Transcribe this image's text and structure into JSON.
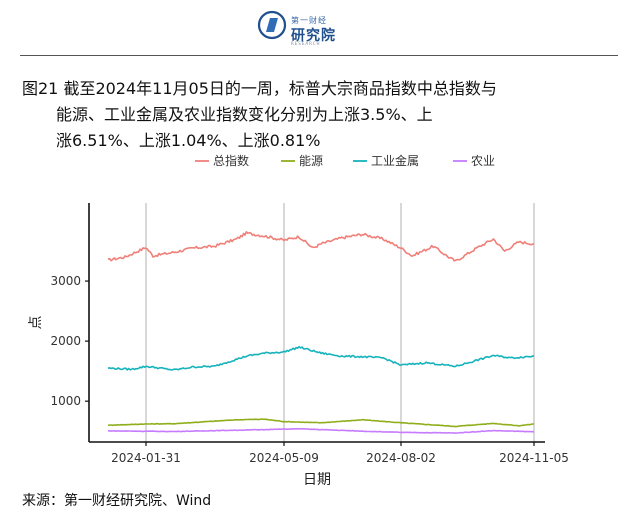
{
  "brand": {
    "small": "第一财经",
    "name": "研究院",
    "sub": "RESEARCH"
  },
  "title": {
    "line1": "图21  截至2024年11月05日的一周，标普大宗商品指数中总指数与",
    "line2": "能源、工业金属及农业指数变化分别为上涨3.5%、上",
    "line3": "涨6.51%、上涨1.04%、上涨0.81%"
  },
  "source": "来源：第一财经研究院、Wind",
  "chart_data": {
    "type": "line",
    "xlabel": "日期",
    "ylabel": "点",
    "x_ticks": [
      "2024-01-31",
      "2024-05-09",
      "2024-08-02",
      "2024-11-05"
    ],
    "x_range": [
      "2024-01-02",
      "2024-11-05"
    ],
    "y_ticks": [
      1000,
      2000,
      3000
    ],
    "ylim": [
      320,
      4300
    ],
    "grid": "vertical lines at x ticks",
    "legend_position": "top",
    "series": [
      {
        "name": "总指数",
        "color": "#f07f78",
        "x": [
          "2024-01-02",
          "2024-01-15",
          "2024-01-31",
          "2024-02-05",
          "2024-02-20",
          "2024-03-05",
          "2024-03-20",
          "2024-04-05",
          "2024-04-12",
          "2024-04-25",
          "2024-05-09",
          "2024-05-20",
          "2024-05-30",
          "2024-06-05",
          "2024-06-20",
          "2024-07-05",
          "2024-07-20",
          "2024-08-02",
          "2024-08-10",
          "2024-08-25",
          "2024-09-05",
          "2024-09-10",
          "2024-09-25",
          "2024-10-07",
          "2024-10-15",
          "2024-10-25",
          "2024-11-05"
        ],
        "values": [
          3350,
          3400,
          3560,
          3420,
          3480,
          3550,
          3580,
          3700,
          3800,
          3750,
          3680,
          3740,
          3550,
          3620,
          3720,
          3780,
          3700,
          3550,
          3420,
          3580,
          3400,
          3330,
          3550,
          3700,
          3500,
          3650,
          3620
        ]
      },
      {
        "name": "能源",
        "color": "#8fae1b",
        "x": [
          "2024-01-02",
          "2024-01-31",
          "2024-02-20",
          "2024-04-05",
          "2024-04-25",
          "2024-05-09",
          "2024-06-05",
          "2024-07-05",
          "2024-08-02",
          "2024-09-10",
          "2024-10-07",
          "2024-10-25",
          "2024-11-05"
        ],
        "values": [
          600,
          620,
          625,
          690,
          700,
          660,
          640,
          690,
          640,
          580,
          630,
          590,
          620
        ]
      },
      {
        "name": "工业金属",
        "color": "#16b3bc",
        "x": [
          "2024-01-02",
          "2024-01-20",
          "2024-01-31",
          "2024-02-20",
          "2024-03-05",
          "2024-03-20",
          "2024-04-12",
          "2024-04-25",
          "2024-05-09",
          "2024-05-20",
          "2024-06-05",
          "2024-06-20",
          "2024-07-05",
          "2024-07-20",
          "2024-08-02",
          "2024-08-20",
          "2024-09-10",
          "2024-09-25",
          "2024-10-07",
          "2024-10-20",
          "2024-11-05"
        ],
        "values": [
          1550,
          1530,
          1580,
          1520,
          1570,
          1580,
          1750,
          1800,
          1820,
          1900,
          1800,
          1750,
          1740,
          1720,
          1600,
          1640,
          1580,
          1680,
          1760,
          1720,
          1750
        ]
      },
      {
        "name": "农业",
        "color": "#c77cff",
        "x": [
          "2024-01-02",
          "2024-02-20",
          "2024-04-12",
          "2024-05-20",
          "2024-07-05",
          "2024-08-02",
          "2024-09-10",
          "2024-10-07",
          "2024-11-05"
        ],
        "values": [
          505,
          495,
          520,
          540,
          500,
          480,
          470,
          510,
          490
        ]
      }
    ]
  }
}
